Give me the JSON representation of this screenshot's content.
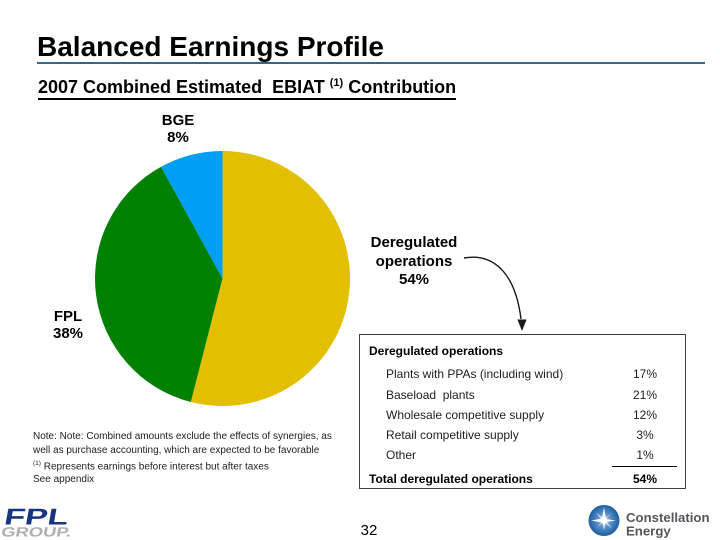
{
  "slide": {
    "title": "Balanced Earnings Profile",
    "subtitle": {
      "prefix": "2007 Combined Estimated  EBIAT ",
      "superscript": "(1)",
      "suffix": " Contribution"
    }
  },
  "chart_data": {
    "type": "pie",
    "title": "2007 Combined Estimated EBIAT(1) Contribution",
    "start_angle_deg": 0,
    "direction": "clockwise",
    "legend": "none",
    "slices": [
      {
        "label": "Deregulated operations",
        "value": 54,
        "color": "#E2BF00"
      },
      {
        "label": "FPL",
        "value": 38,
        "color": "#008000"
      },
      {
        "label": "BGE",
        "value": 8,
        "color": "#009FF5"
      }
    ]
  },
  "pie_labels": {
    "bge": {
      "name": "BGE",
      "value": "8%"
    },
    "fpl": {
      "name": "FPL",
      "value": "38%"
    },
    "deregulated": {
      "line1": "Deregulated",
      "line2": "operations",
      "line3": "54%"
    }
  },
  "breakdown_table": {
    "header": "Deregulated operations",
    "rows": [
      {
        "label": "Plants with PPAs (including wind)",
        "value": "17%"
      },
      {
        "label": "Baseload  plants",
        "value": "21%"
      },
      {
        "label": "Wholesale competitive supply",
        "value": "12%"
      },
      {
        "label": "Retail competitive supply",
        "value": "3%"
      },
      {
        "label": "Other",
        "value": "1%"
      }
    ],
    "total": {
      "label": "Total deregulated operations",
      "value": "54%"
    }
  },
  "notes": {
    "line1": "Note: Note: Combined amounts exclude the effects of synergies, as",
    "line2": "well as purchase accounting, which are expected to be favorable",
    "footnote_marker": "(1)",
    "footnote_text": " Represents earnings before interest but after taxes",
    "see_appendix": "See appendix"
  },
  "footer": {
    "page_number": "32",
    "fpl_logo": {
      "line1": "FPL",
      "line2": "GROUP."
    },
    "constellation_logo": {
      "line1": "Constellation",
      "line2": "Energy"
    }
  },
  "colors": {
    "title_rule": "#33678F",
    "pie_yellow": "#E2BF00",
    "pie_green": "#008000",
    "pie_blue": "#009FF5",
    "fpl_logo_blue": "#17357E",
    "fpl_logo_gray": "#AFAFAF",
    "constellation_text": "#54565A",
    "constellation_sphere": "#2667A8"
  }
}
